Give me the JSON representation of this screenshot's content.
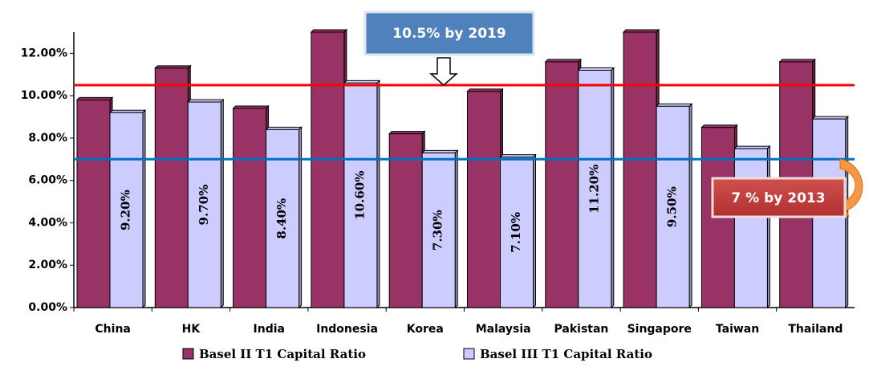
{
  "chart_data": {
    "type": "bar",
    "categories": [
      "China",
      "HK",
      "India",
      "Indonesia",
      "Korea",
      "Malaysia",
      "Pakistan",
      "Singapore",
      "Taiwan",
      "Thailand"
    ],
    "series": [
      {
        "name": "Basel II T1 Capital Ratio",
        "color": "#993366",
        "values": [
          9.8,
          11.3,
          9.4,
          13.0,
          8.2,
          10.2,
          11.6,
          13.0,
          8.5,
          11.6
        ]
      },
      {
        "name": "Basel III T1 Capital Ratio",
        "color": "#ccccff",
        "values": [
          9.2,
          9.7,
          8.4,
          10.6,
          7.3,
          7.1,
          11.2,
          9.5,
          7.5,
          8.9
        ],
        "value_labels": [
          "9.20%",
          "9.70%",
          "8.40%",
          "10.60%",
          "7.30%",
          "7.10%",
          "11.20%",
          "9.50%",
          null,
          null
        ]
      }
    ],
    "ylim": [
      0,
      13
    ],
    "yticks": [
      {
        "value": 0,
        "label": "0.00%"
      },
      {
        "value": 2,
        "label": "2.00%"
      },
      {
        "value": 4,
        "label": "4.00%"
      },
      {
        "value": 6,
        "label": "6.00%"
      },
      {
        "value": 8,
        "label": "8.00%"
      },
      {
        "value": 10,
        "label": "10.00%"
      },
      {
        "value": 12,
        "label": "12.00%"
      }
    ],
    "reference_lines": [
      {
        "value": 10.5,
        "color": "#ff0000",
        "label": "10.5% by 2019"
      },
      {
        "value": 7,
        "color": "#0070c0",
        "label": "7 % by 2013"
      }
    ],
    "legend": "bottom"
  }
}
